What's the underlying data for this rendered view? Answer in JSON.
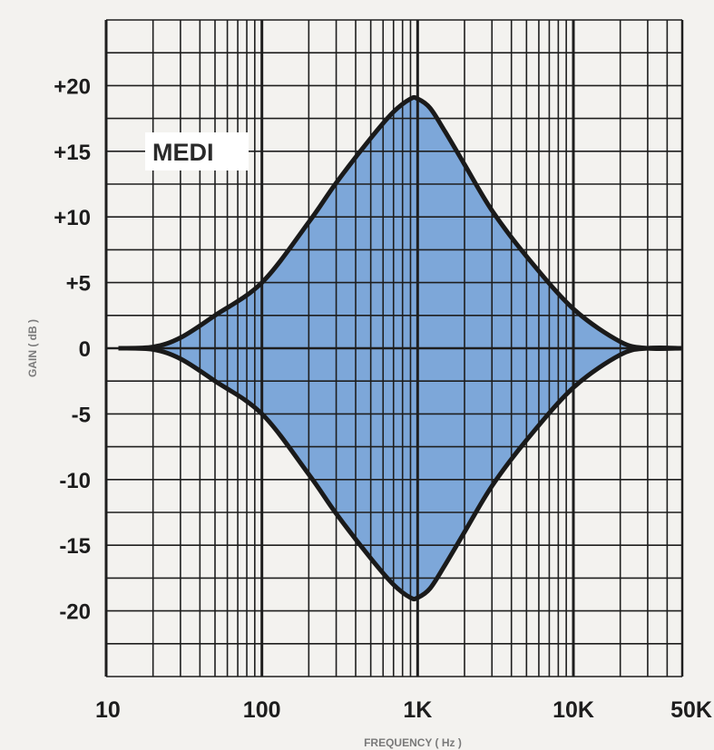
{
  "chart_data": {
    "type": "area",
    "band_label": "MEDI",
    "xlabel": "FREQUENCY ( Hz )",
    "ylabel": "GAIN ( dB )",
    "x_scale": "log",
    "xlim": [
      10,
      50000
    ],
    "ylim": [
      -25,
      25
    ],
    "x_ticks": [
      {
        "value": 10,
        "label": "10"
      },
      {
        "value": 100,
        "label": "100"
      },
      {
        "value": 1000,
        "label": "1K"
      },
      {
        "value": 10000,
        "label": "10K"
      },
      {
        "value": 50000,
        "label": "50K"
      }
    ],
    "y_ticks": [
      {
        "value": 20,
        "label": "+20"
      },
      {
        "value": 15,
        "label": "+15"
      },
      {
        "value": 10,
        "label": "+10"
      },
      {
        "value": 5,
        "label": "+5"
      },
      {
        "value": 0,
        "label": "0"
      },
      {
        "value": -5,
        "label": "-5"
      },
      {
        "value": -10,
        "label": "-10"
      },
      {
        "value": -15,
        "label": "-15"
      },
      {
        "value": -20,
        "label": "-20"
      }
    ],
    "grid": true,
    "fill_color": "#7da7d9",
    "line_color": "#1a1a1a",
    "series": [
      {
        "x": [
          12,
          20,
          30,
          50,
          100,
          200,
          300,
          500,
          700,
          900,
          1000,
          1200,
          1500,
          2000,
          3000,
          5000,
          10000,
          20000,
          30000,
          50000
        ],
        "y": [
          0,
          0.1,
          0.8,
          2.5,
          5,
          9.6,
          12.6,
          16,
          18,
          19,
          19,
          18.3,
          16.5,
          14,
          10.5,
          7,
          3,
          0.5,
          0,
          0
        ]
      },
      {
        "x": [
          12,
          20,
          30,
          50,
          100,
          200,
          300,
          500,
          700,
          900,
          1000,
          1200,
          1500,
          2000,
          3000,
          5000,
          10000,
          20000,
          30000,
          50000
        ],
        "y": [
          0,
          -0.1,
          -0.8,
          -2.5,
          -5,
          -9.6,
          -12.6,
          -16,
          -18,
          -19,
          -19,
          -18.3,
          -16.5,
          -14,
          -10.5,
          -7,
          -3,
          -0.5,
          0,
          0
        ]
      }
    ]
  }
}
